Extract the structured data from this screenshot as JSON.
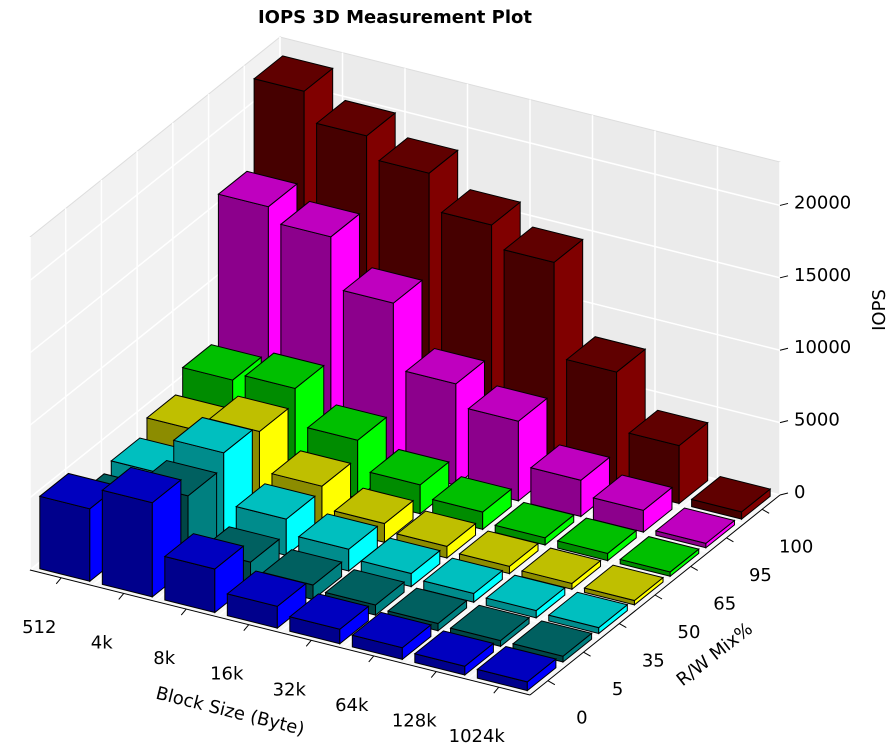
{
  "chart_data": {
    "type": "bar3d",
    "title": "IOPS 3D Measurement Plot",
    "x_label": "Block Size (Byte)",
    "y_label": "R/W Mix%",
    "z_label": "IOPS",
    "categories": [
      "512",
      "4k",
      "8k",
      "16k",
      "32k",
      "64k",
      "128k",
      "1024k"
    ],
    "series": [
      {
        "name": "0",
        "color": "#0000ff",
        "values": [
          5000,
          6500,
          3000,
          1500,
          1000,
          800,
          600,
          600
        ]
      },
      {
        "name": "5",
        "color": "#008080",
        "values": [
          3000,
          5000,
          1500,
          1000,
          700,
          500,
          400,
          400
        ]
      },
      {
        "name": "35",
        "color": "#00ffff",
        "values": [
          3500,
          6000,
          2500,
          1500,
          900,
          600,
          500,
          400
        ]
      },
      {
        "name": "50",
        "color": "#ffff00",
        "values": [
          4500,
          5500,
          2800,
          1300,
          800,
          500,
          400,
          300
        ]
      },
      {
        "name": "65",
        "color": "#00ff00",
        "values": [
          6000,
          6500,
          4000,
          2000,
          1200,
          500,
          500,
          300
        ]
      },
      {
        "name": "95",
        "color": "#ff00ff",
        "values": [
          16000,
          15000,
          11500,
          7000,
          5500,
          2500,
          1500,
          300
        ]
      },
      {
        "name": "100",
        "color": "#800000",
        "values": [
          22000,
          20000,
          18500,
          16000,
          14500,
          8000,
          4000,
          500
        ]
      }
    ],
    "zlim": [
      0,
      23000
    ],
    "zticks": [
      0,
      5000,
      10000,
      15000,
      20000
    ],
    "grid": true
  }
}
